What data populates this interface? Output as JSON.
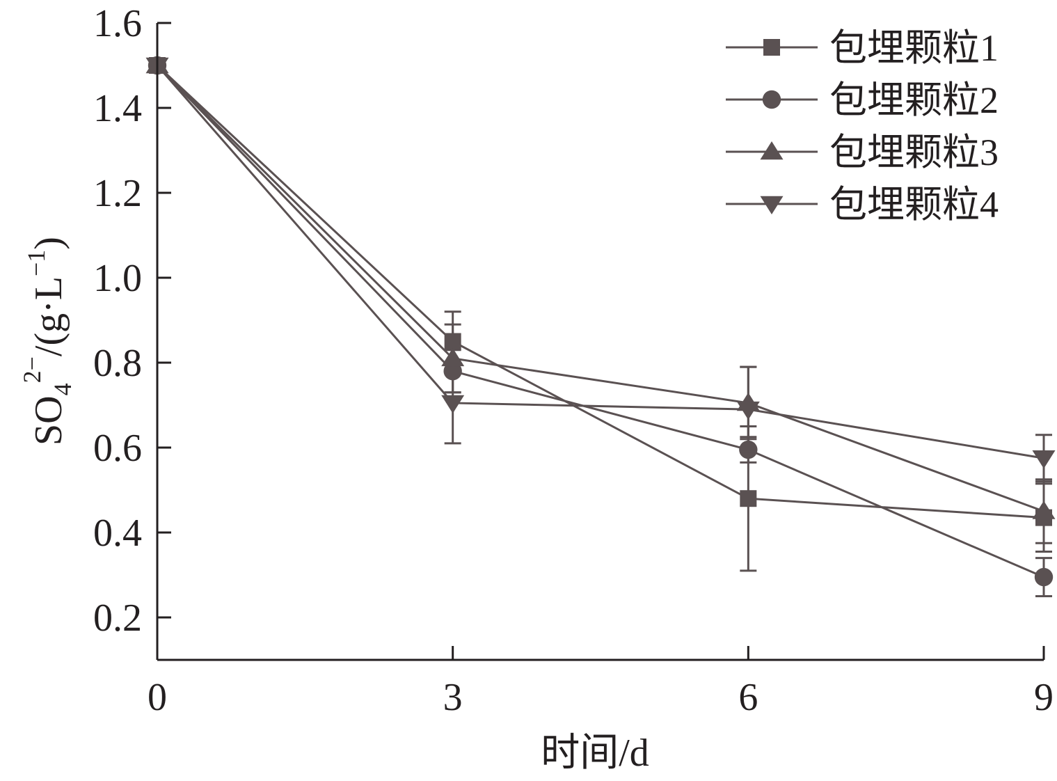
{
  "chart_data": {
    "type": "line",
    "title": "",
    "xlabel": "时间/d",
    "ylabel": {
      "base": "SO",
      "subscript": "4",
      "superscript": "2−",
      "unit_prefix": "/(g·L",
      "unit_exp": "−1",
      "unit_suffix": ")"
    },
    "x": [
      0,
      3,
      6,
      9
    ],
    "x_ticks": [
      "0",
      "3",
      "6",
      "9"
    ],
    "xlim": [
      0,
      9
    ],
    "ylim": [
      0.1,
      1.6
    ],
    "y_ticks": [
      "0.2",
      "0.4",
      "0.6",
      "0.8",
      "1.0",
      "1.2",
      "1.4",
      "1.6"
    ],
    "grid": false,
    "legend_position": "top-right",
    "line_color": "#5a5152",
    "series": [
      {
        "name": "包埋颗粒1",
        "marker": "square",
        "values": [
          1.5,
          0.85,
          0.48,
          0.435
        ],
        "errors": [
          0,
          0.07,
          0.17,
          0.08
        ]
      },
      {
        "name": "包埋颗粒2",
        "marker": "circle",
        "values": [
          1.5,
          0.78,
          0.595,
          0.295
        ],
        "errors": [
          0,
          0.05,
          0.03,
          0.045
        ]
      },
      {
        "name": "包埋颗粒3",
        "marker": "triangle-up",
        "values": [
          1.5,
          0.81,
          0.705,
          0.45
        ],
        "errors": [
          0,
          0.08,
          0.085,
          0.075
        ]
      },
      {
        "name": "包埋颗粒4",
        "marker": "triangle-down",
        "values": [
          1.5,
          0.705,
          0.69,
          0.575
        ],
        "errors": [
          0,
          0.095,
          0.1,
          0.055
        ]
      }
    ]
  }
}
